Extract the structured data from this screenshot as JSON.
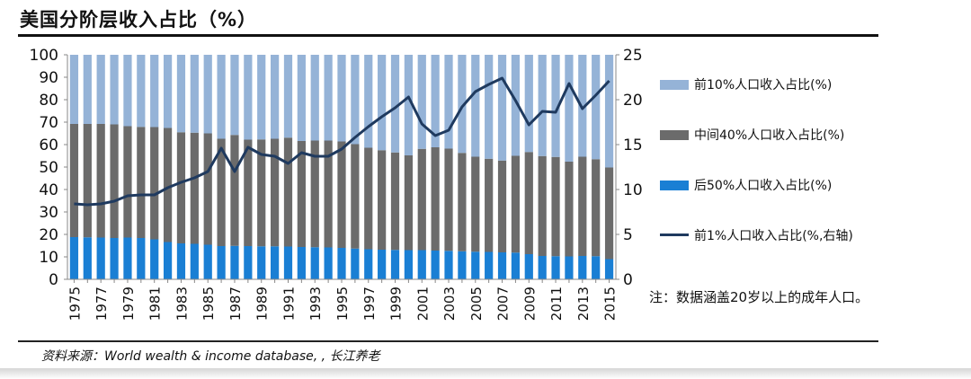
{
  "title": "美国分阶层收入占比（%）",
  "source": "资料来源：World wealth & income database, , 长江养老",
  "note": "注：数据涵盖20岁以上的成年人口。",
  "colors": {
    "top10": "#95b3d7",
    "middle40": "#6b6b6b",
    "bottom50": "#1a7fd4",
    "top1": "#1f3a5f"
  },
  "chart_data": {
    "type": "bar",
    "stacked": true,
    "categories": [
      "1975",
      "1976",
      "1977",
      "1978",
      "1979",
      "1980",
      "1981",
      "1982",
      "1983",
      "1984",
      "1985",
      "1986",
      "1987",
      "1988",
      "1989",
      "1990",
      "1991",
      "1992",
      "1993",
      "1994",
      "1995",
      "1996",
      "1997",
      "1998",
      "1999",
      "2000",
      "2001",
      "2002",
      "2003",
      "2004",
      "2005",
      "2006",
      "2007",
      "2008",
      "2009",
      "2010",
      "2011",
      "2012",
      "2013",
      "2014",
      "2015"
    ],
    "x_tick_labels": [
      "1975",
      "1977",
      "1979",
      "1981",
      "1983",
      "1985",
      "1987",
      "1989",
      "1991",
      "1993",
      "1995",
      "1997",
      "1999",
      "2001",
      "2003",
      "2005",
      "2007",
      "2009",
      "2011",
      "2013",
      "2015"
    ],
    "series": [
      {
        "name": "后50%人口收入占比(%)",
        "key": "bottom50",
        "axis": "left",
        "values": [
          18.8,
          18.7,
          18.6,
          18.4,
          18.6,
          18.4,
          17.8,
          16.6,
          16.0,
          15.8,
          15.4,
          14.8,
          14.9,
          14.8,
          14.7,
          14.7,
          14.6,
          14.4,
          14.3,
          14.2,
          14.0,
          13.7,
          13.4,
          13.2,
          13.1,
          13.0,
          13.0,
          12.8,
          12.7,
          12.5,
          12.3,
          12.2,
          12.0,
          11.9,
          11.2,
          10.4,
          10.3,
          10.2,
          10.4,
          10.3,
          9.0
        ]
      },
      {
        "name": "中间40%人口收入占比(%)",
        "key": "middle40",
        "axis": "left",
        "values": [
          50.4,
          50.5,
          50.6,
          50.6,
          49.6,
          49.5,
          50.0,
          50.8,
          49.5,
          49.5,
          49.6,
          47.8,
          49.4,
          47.4,
          47.6,
          47.9,
          48.5,
          47.2,
          47.5,
          47.6,
          47.4,
          46.5,
          45.2,
          44.3,
          43.4,
          42.2,
          45.1,
          46.0,
          45.5,
          43.8,
          42.3,
          41.5,
          40.9,
          43.1,
          45.5,
          44.5,
          44.2,
          42.2,
          44.2,
          43.2,
          40.8
        ]
      },
      {
        "name": "前10%人口收入占比(%)",
        "key": "top10",
        "axis": "left",
        "values": [
          30.8,
          30.8,
          30.8,
          31.0,
          31.8,
          32.1,
          32.2,
          32.6,
          34.5,
          34.7,
          35.0,
          37.4,
          35.7,
          37.8,
          37.7,
          37.4,
          36.9,
          38.4,
          38.2,
          38.2,
          38.6,
          39.8,
          41.4,
          42.5,
          43.5,
          44.8,
          41.9,
          41.2,
          41.8,
          43.7,
          45.4,
          46.3,
          47.1,
          45.0,
          43.3,
          45.1,
          45.5,
          47.6,
          45.4,
          46.5,
          50.2
        ]
      },
      {
        "name": "前1%人口收入占比(%,右轴)",
        "key": "top1",
        "axis": "right",
        "type": "line",
        "values": [
          8.4,
          8.3,
          8.4,
          8.7,
          9.3,
          9.4,
          9.4,
          10.2,
          10.8,
          11.3,
          12.0,
          14.6,
          12.0,
          14.7,
          13.9,
          13.7,
          12.9,
          14.1,
          13.7,
          13.7,
          14.5,
          15.8,
          17.0,
          18.1,
          19.1,
          20.3,
          17.3,
          16.0,
          16.6,
          19.2,
          20.9,
          21.7,
          22.4,
          19.9,
          17.2,
          18.7,
          18.6,
          21.8,
          19.0,
          20.5,
          22.1
        ]
      }
    ],
    "legend_order": [
      "top10",
      "middle40",
      "bottom50",
      "top1"
    ],
    "y_left": {
      "min": 0,
      "max": 100,
      "ticks": [
        0,
        10,
        20,
        30,
        40,
        50,
        60,
        70,
        80,
        90,
        100
      ]
    },
    "y_right": {
      "min": 0,
      "max": 25,
      "ticks": [
        0,
        5,
        10,
        15,
        20,
        25
      ]
    },
    "legend_position": "right"
  }
}
